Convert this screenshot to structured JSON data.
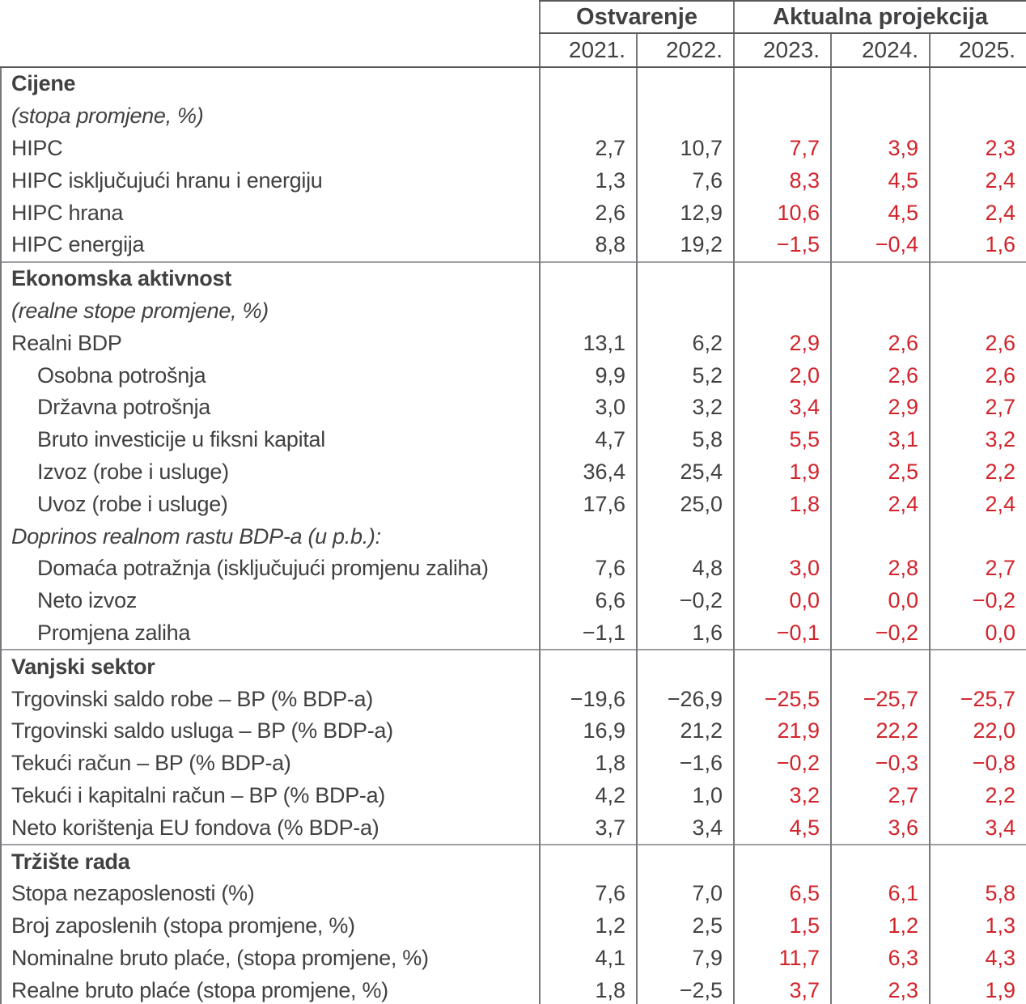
{
  "header": {
    "group_actual": "Ostvarenje",
    "group_projection": "Aktualna projekcija",
    "years": [
      "2021.",
      "2022.",
      "2023.",
      "2024.",
      "2025."
    ]
  },
  "colors": {
    "projection_text": "#d2232a",
    "actual_text": "#414042"
  },
  "sections": [
    {
      "title": "Cijene",
      "subtitle": "(stopa promjene, %)",
      "rows": [
        {
          "label": "HIPC",
          "style": "plain",
          "values": [
            "2,7",
            "10,7",
            "7,7",
            "3,9",
            "2,3"
          ]
        },
        {
          "label": "HIPC isključujući hranu i energiju",
          "style": "plain",
          "values": [
            "1,3",
            "7,6",
            "8,3",
            "4,5",
            "2,4"
          ]
        },
        {
          "label": "HIPC hrana",
          "style": "plain",
          "values": [
            "2,6",
            "12,9",
            "10,6",
            "4,5",
            "2,4"
          ]
        },
        {
          "label": "HIPC energija",
          "style": "plain",
          "values": [
            "8,8",
            "19,2",
            "−1,5",
            "−0,4",
            "1,6"
          ]
        }
      ]
    },
    {
      "title": "Ekonomska aktivnost",
      "subtitle": "(realne stope promjene, %)",
      "rows": [
        {
          "label": "Realni BDP",
          "style": "plain",
          "values": [
            "13,1",
            "6,2",
            "2,9",
            "2,6",
            "2,6"
          ]
        },
        {
          "label": "Osobna potrošnja",
          "style": "indent",
          "values": [
            "9,9",
            "5,2",
            "2,0",
            "2,6",
            "2,6"
          ]
        },
        {
          "label": "Državna potrošnja",
          "style": "indent",
          "values": [
            "3,0",
            "3,2",
            "3,4",
            "2,9",
            "2,7"
          ]
        },
        {
          "label": "Bruto investicije u fiksni kapital",
          "style": "indent",
          "values": [
            "4,7",
            "5,8",
            "5,5",
            "3,1",
            "3,2"
          ]
        },
        {
          "label": "Izvoz (robe i usluge)",
          "style": "indent",
          "values": [
            "36,4",
            "25,4",
            "1,9",
            "2,5",
            "2,2"
          ]
        },
        {
          "label": "Uvoz (robe i usluge)",
          "style": "indent",
          "values": [
            "17,6",
            "25,0",
            "1,8",
            "2,4",
            "2,4"
          ]
        },
        {
          "label": "Doprinos realnom rastu BDP-a (u p.b.):",
          "style": "note",
          "values": [
            "",
            "",
            "",
            "",
            ""
          ]
        },
        {
          "label": "Domaća potražnja (isključujući promjenu zaliha)",
          "style": "indent",
          "values": [
            "7,6",
            "4,8",
            "3,0",
            "2,8",
            "2,7"
          ]
        },
        {
          "label": "Neto izvoz",
          "style": "indent",
          "values": [
            "6,6",
            "−0,2",
            "0,0",
            "0,0",
            "−0,2"
          ]
        },
        {
          "label": "Promjena zaliha",
          "style": "indent",
          "values": [
            "−1,1",
            "1,6",
            "−0,1",
            "−0,2",
            "0,0"
          ]
        }
      ]
    },
    {
      "title": "Vanjski sektor",
      "subtitle": "",
      "rows": [
        {
          "label": "Trgovinski saldo robe – BP (% BDP-a)",
          "style": "plain",
          "values": [
            "−19,6",
            "−26,9",
            "−25,5",
            "−25,7",
            "−25,7"
          ]
        },
        {
          "label": "Trgovinski saldo usluga – BP (% BDP-a)",
          "style": "plain",
          "values": [
            "16,9",
            "21,2",
            "21,9",
            "22,2",
            "22,0"
          ]
        },
        {
          "label": "Tekući račun – BP (% BDP-a)",
          "style": "plain",
          "values": [
            "1,8",
            "−1,6",
            "−0,2",
            "−0,3",
            "−0,8"
          ]
        },
        {
          "label": "Tekući i kapitalni račun – BP (% BDP-a)",
          "style": "plain",
          "values": [
            "4,2",
            "1,0",
            "3,2",
            "2,7",
            "2,2"
          ]
        },
        {
          "label": "Neto korištenja EU fondova (% BDP-a)",
          "style": "plain",
          "values": [
            "3,7",
            "3,4",
            "4,5",
            "3,6",
            "3,4"
          ]
        }
      ]
    },
    {
      "title": "Tržište rada",
      "subtitle": "",
      "rows": [
        {
          "label": "Stopa nezaposlenosti (%)",
          "style": "plain",
          "values": [
            "7,6",
            "7,0",
            "6,5",
            "6,1",
            "5,8"
          ]
        },
        {
          "label": "Broj zaposlenih (stopa promjene, %)",
          "style": "plain",
          "values": [
            "1,2",
            "2,5",
            "1,5",
            "1,2",
            "1,3"
          ]
        },
        {
          "label": "Nominalne bruto plaće, (stopa promjene, %)",
          "style": "plain",
          "values": [
            "4,1",
            "7,9",
            "11,7",
            "6,3",
            "4,3"
          ]
        },
        {
          "label": "Realne bruto plaće (stopa promjene, %)",
          "style": "plain",
          "values": [
            "1,8",
            "−2,5",
            "3,7",
            "2,3",
            "1,9"
          ]
        }
      ]
    }
  ]
}
